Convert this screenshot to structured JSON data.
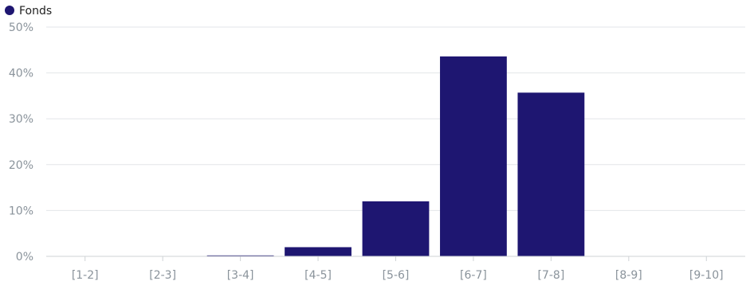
{
  "chart_data": {
    "type": "bar",
    "categories": [
      "[1-2]",
      "[2-3]",
      "[3-4]",
      "[4-5]",
      "[5-6]",
      "[6-7]",
      "[7-8]",
      "[8-9]",
      "[9-10]"
    ],
    "series": [
      {
        "name": "Fonds",
        "values": [
          0,
          0,
          0.2,
          2,
          12,
          43.6,
          35.7,
          0,
          0
        ],
        "color": "#1e1671"
      }
    ],
    "ylim": [
      0,
      50
    ],
    "yticks": [
      0,
      10,
      20,
      30,
      40,
      50
    ],
    "ytick_labels": [
      "0%",
      "10%",
      "20%",
      "30%",
      "40%",
      "50%"
    ],
    "grid": true,
    "legend": "top-left"
  }
}
